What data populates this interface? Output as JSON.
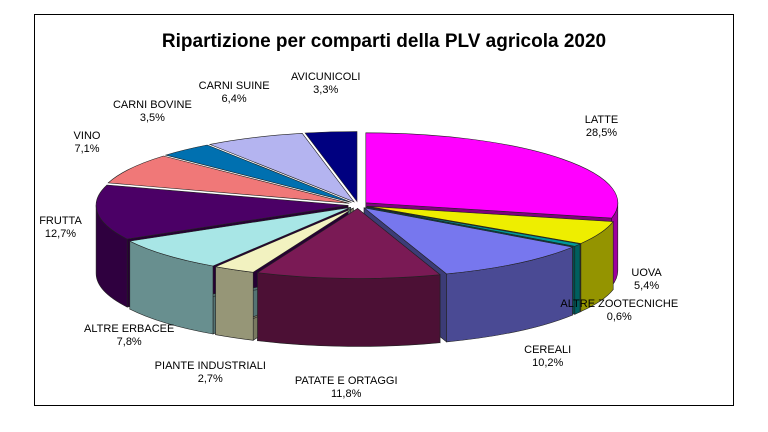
{
  "chart_data": {
    "type": "pie",
    "style": "3d-exploded",
    "title": "Ripartizione per comparti della PLV agricola 2020",
    "slices": [
      {
        "label": "LATTE",
        "value": 28.5,
        "value_text": "28,5%",
        "color": "#FF00FF"
      },
      {
        "label": "UOVA",
        "value": 5.4,
        "value_text": "5,4%",
        "color": "#EEEE00"
      },
      {
        "label": "ALTRE ZOOTECNICHE",
        "value": 0.6,
        "value_text": "0,6%",
        "color": "#009999"
      },
      {
        "label": "CEREALI",
        "value": 10.2,
        "value_text": "10,2%",
        "color": "#7777EE"
      },
      {
        "label": "PATATE E ORTAGGI",
        "value": 11.8,
        "value_text": "11,8%",
        "color": "#7A1A55"
      },
      {
        "label": "PIANTE INDUSTRIALI",
        "value": 2.7,
        "value_text": "2,7%",
        "color": "#F2F2C0"
      },
      {
        "label": "ALTRE ERBACEE",
        "value": 7.8,
        "value_text": "7,8%",
        "color": "#A8E6E6"
      },
      {
        "label": "FRUTTA",
        "value": 12.7,
        "value_text": "12,7%",
        "color": "#4B0066"
      },
      {
        "label": "VINO",
        "value": 7.1,
        "value_text": "7,1%",
        "color": "#F07878"
      },
      {
        "label": "CARNI BOVINE",
        "value": 3.5,
        "value_text": "3,5%",
        "color": "#0070B0"
      },
      {
        "label": "CARNI SUINE",
        "value": 6.4,
        "value_text": "6,4%",
        "color": "#B4B4F0"
      },
      {
        "label": "AVICUNICOLI",
        "value": 3.3,
        "value_text": "3,3%",
        "color": "#000080"
      }
    ]
  }
}
